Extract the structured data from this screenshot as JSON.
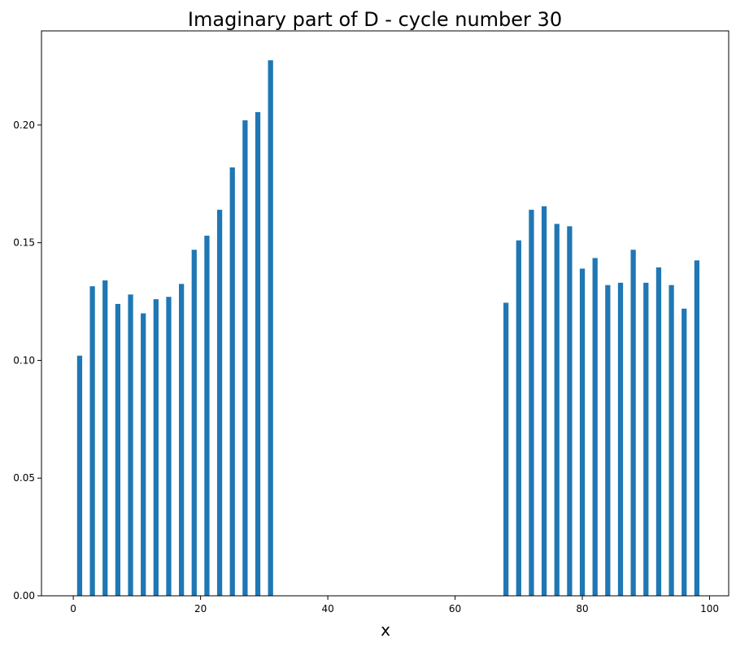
{
  "chart_data": {
    "type": "bar",
    "title": "Imaginary part of D - cycle number 30",
    "xlabel": "x",
    "ylabel": "",
    "xlim": [
      -5,
      103
    ],
    "ylim": [
      0,
      0.24
    ],
    "xticks": [
      0,
      20,
      40,
      60,
      80,
      100
    ],
    "xtick_labels": [
      "0",
      "20",
      "40",
      "60",
      "80",
      "100"
    ],
    "yticks": [
      0.0,
      0.05,
      0.1,
      0.15,
      0.2
    ],
    "ytick_labels": [
      "0.00",
      "0.05",
      "0.10",
      "0.15",
      "0.20"
    ],
    "grid": false,
    "bar_color": "#1f77b4",
    "bar_width": 0.8,
    "x": [
      1,
      3,
      5,
      7,
      9,
      11,
      13,
      15,
      17,
      19,
      21,
      23,
      25,
      27,
      29,
      31,
      68,
      70,
      72,
      74,
      76,
      78,
      80,
      82,
      84,
      86,
      88,
      90,
      92,
      94,
      96,
      98
    ],
    "values": [
      0.102,
      0.1315,
      0.134,
      0.124,
      0.128,
      0.12,
      0.126,
      0.127,
      0.1325,
      0.147,
      0.153,
      0.164,
      0.182,
      0.202,
      0.2055,
      0.2275,
      0.1245,
      0.151,
      0.164,
      0.1655,
      0.158,
      0.157,
      0.139,
      0.1435,
      0.132,
      0.133,
      0.147,
      0.133,
      0.1395,
      0.132,
      0.122,
      0.1425
    ]
  }
}
